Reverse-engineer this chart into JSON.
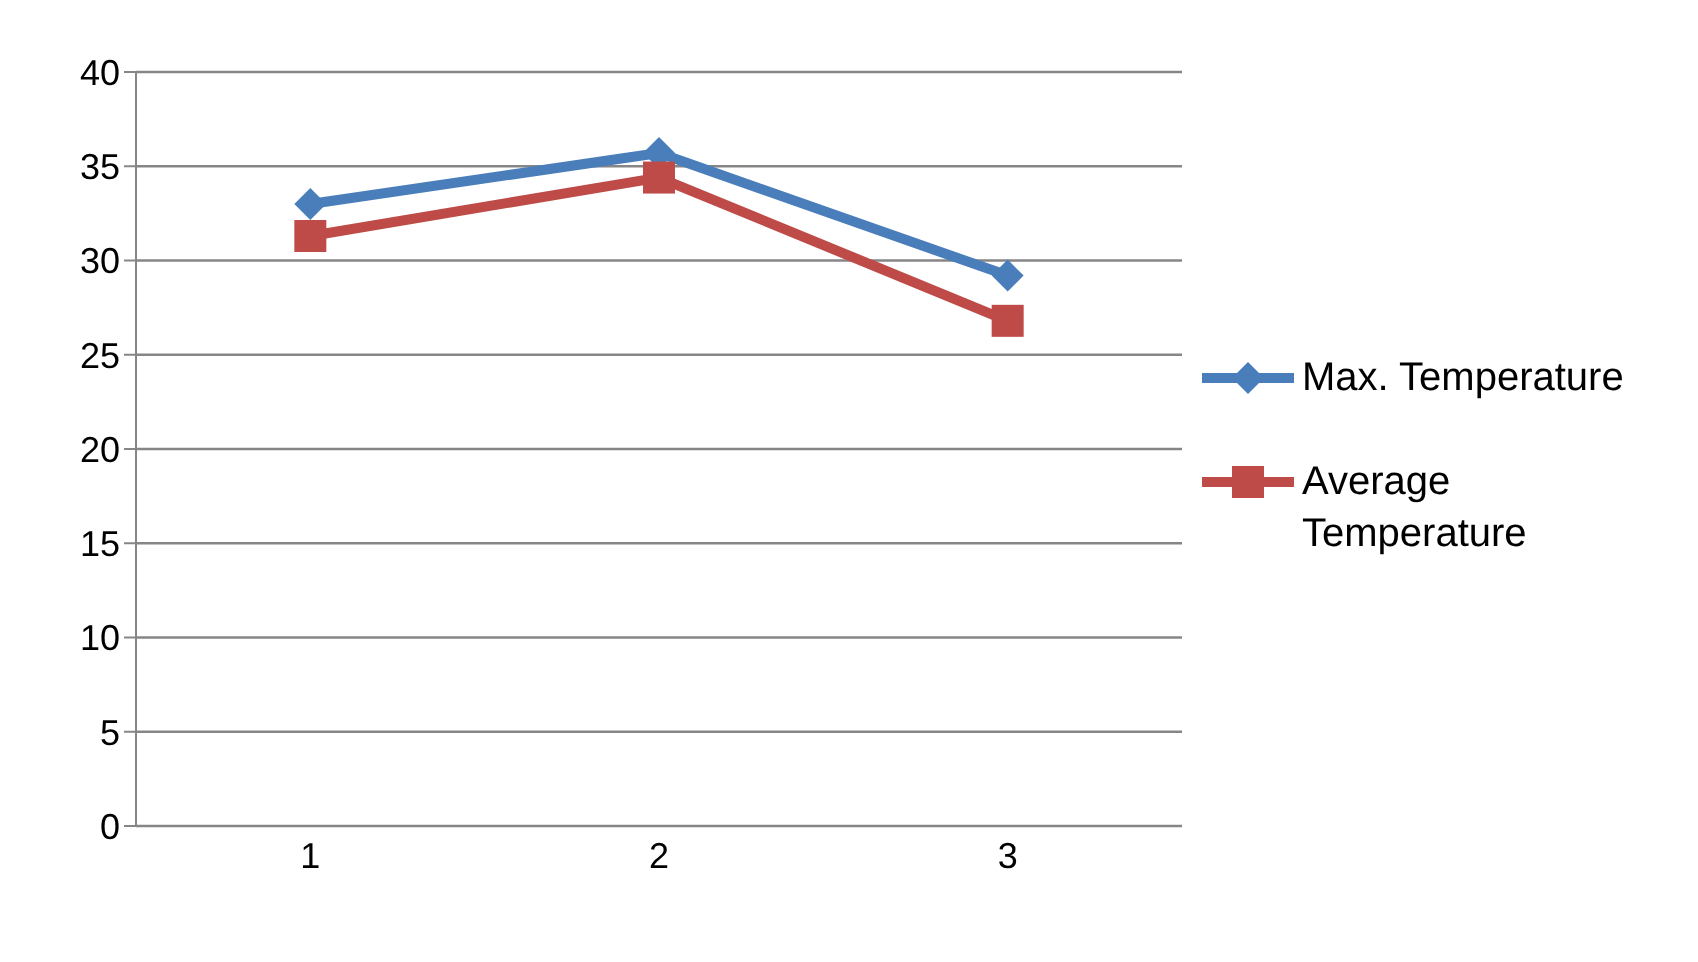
{
  "chart_data": {
    "type": "line",
    "categories": [
      "1",
      "2",
      "3"
    ],
    "ylim": [
      0,
      40
    ],
    "yticks": [
      0,
      5,
      10,
      15,
      20,
      25,
      30,
      35,
      40
    ],
    "grid": "y",
    "legend": "right",
    "series": [
      {
        "name": "Max. Temperature",
        "color": "#4a7ebb",
        "values": [
          33,
          35.7,
          29.2
        ],
        "marker": "diamond"
      },
      {
        "name": "Average Temperature",
        "color": "#be4b48",
        "values": [
          31.3,
          34.4,
          26.8
        ],
        "marker": "square"
      }
    ]
  }
}
